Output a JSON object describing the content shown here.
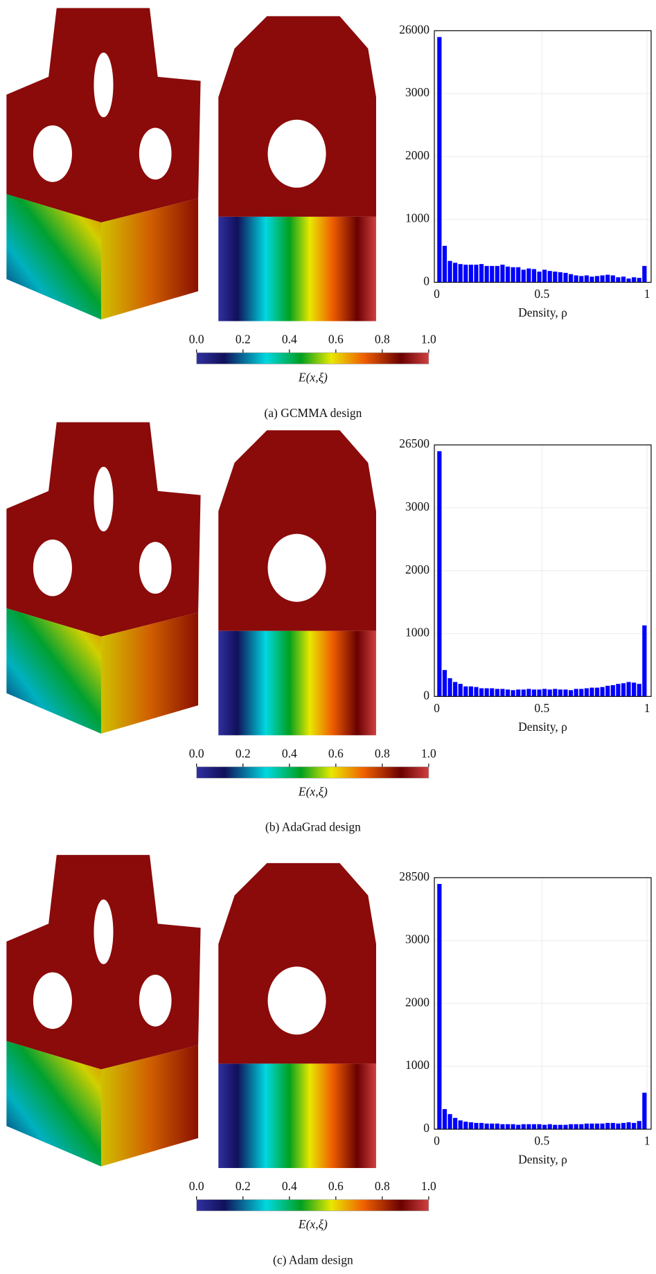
{
  "chart_data": [
    {
      "type": "histogram",
      "caption": "(a) GCMMA design",
      "xlabel": "Density, ρ",
      "color": "#0000ff",
      "bins": [
        0,
        0.025,
        0.05,
        0.075,
        0.1,
        0.125,
        0.15,
        0.175,
        0.2,
        0.225,
        0.25,
        0.275,
        0.3,
        0.325,
        0.35,
        0.375,
        0.4,
        0.425,
        0.45,
        0.475,
        0.5,
        0.525,
        0.55,
        0.575,
        0.6,
        0.625,
        0.65,
        0.675,
        0.7,
        0.725,
        0.75,
        0.775,
        0.8,
        0.825,
        0.85,
        0.875,
        0.9,
        0.925,
        0.95,
        0.975,
        1
      ],
      "values": [
        25900,
        580,
        340,
        310,
        290,
        280,
        280,
        280,
        290,
        260,
        260,
        260,
        280,
        250,
        240,
        240,
        200,
        220,
        210,
        170,
        200,
        180,
        170,
        160,
        150,
        130,
        110,
        100,
        110,
        90,
        100,
        110,
        120,
        110,
        80,
        90,
        60,
        80,
        70,
        260
      ],
      "xlim": [
        0,
        1
      ],
      "xticks": [
        0,
        0.5,
        1
      ],
      "ylim": [
        0,
        26000
      ],
      "ybreak": [
        3500,
        25500
      ],
      "yticks": [
        0,
        1000,
        2000,
        3000,
        26000
      ],
      "grid": true,
      "colorbar": {
        "label": "E(x,ξ)",
        "ticks": [
          {
            "value": 0,
            "label": "0.0"
          },
          0.2,
          0.4,
          0.6,
          0.8,
          {
            "value": 1,
            "label": "1.0"
          }
        ]
      }
    },
    {
      "type": "histogram",
      "caption": "(b) AdaGrad design",
      "xlabel": "Density, ρ",
      "color": "#0000ff",
      "bins": [
        0,
        0.025,
        0.05,
        0.075,
        0.1,
        0.125,
        0.15,
        0.175,
        0.2,
        0.225,
        0.25,
        0.275,
        0.3,
        0.325,
        0.35,
        0.375,
        0.4,
        0.425,
        0.45,
        0.475,
        0.5,
        0.525,
        0.55,
        0.575,
        0.6,
        0.625,
        0.65,
        0.675,
        0.7,
        0.725,
        0.75,
        0.775,
        0.8,
        0.825,
        0.85,
        0.875,
        0.9,
        0.925,
        0.95,
        0.975,
        1
      ],
      "values": [
        26400,
        420,
        290,
        230,
        200,
        160,
        160,
        150,
        130,
        130,
        130,
        120,
        120,
        110,
        100,
        110,
        110,
        120,
        110,
        110,
        120,
        110,
        120,
        110,
        110,
        100,
        120,
        120,
        130,
        140,
        140,
        150,
        170,
        180,
        200,
        210,
        230,
        220,
        200,
        1130
      ],
      "xlim": [
        0,
        1
      ],
      "xticks": [
        0,
        0.5,
        1
      ],
      "ylim": [
        0,
        26500
      ],
      "ybreak": [
        3500,
        26000
      ],
      "yticks": [
        0,
        1000,
        2000,
        3000,
        26500
      ],
      "grid": true,
      "colorbar": {
        "label": "E(x,ξ)",
        "ticks": [
          {
            "value": 0,
            "label": "0.0"
          },
          0.2,
          0.4,
          0.6,
          0.8,
          {
            "value": 1,
            "label": "1.0"
          }
        ]
      }
    },
    {
      "type": "histogram",
      "caption": "(c) Adam design",
      "xlabel": "Density, ρ",
      "color": "#0000ff",
      "bins": [
        0,
        0.025,
        0.05,
        0.075,
        0.1,
        0.125,
        0.15,
        0.175,
        0.2,
        0.225,
        0.25,
        0.275,
        0.3,
        0.325,
        0.35,
        0.375,
        0.4,
        0.425,
        0.45,
        0.475,
        0.5,
        0.525,
        0.55,
        0.575,
        0.6,
        0.625,
        0.65,
        0.675,
        0.7,
        0.725,
        0.75,
        0.775,
        0.8,
        0.825,
        0.85,
        0.875,
        0.9,
        0.925,
        0.95,
        0.975,
        1
      ],
      "values": [
        28400,
        320,
        240,
        180,
        140,
        120,
        110,
        100,
        100,
        90,
        90,
        90,
        80,
        80,
        80,
        70,
        80,
        80,
        80,
        80,
        70,
        80,
        70,
        70,
        70,
        80,
        80,
        80,
        90,
        90,
        90,
        90,
        100,
        100,
        90,
        100,
        110,
        100,
        130,
        580
      ],
      "xlim": [
        0,
        1
      ],
      "xticks": [
        0,
        0.5,
        1
      ],
      "ylim": [
        0,
        28500
      ],
      "ybreak": [
        3500,
        28000
      ],
      "yticks": [
        0,
        1000,
        2000,
        3000,
        28500
      ],
      "grid": true,
      "colorbar": {
        "label": "E(x,ξ)",
        "ticks": [
          {
            "value": 0,
            "label": "0.0"
          },
          0.2,
          0.4,
          0.6,
          0.8,
          {
            "value": 1,
            "label": "1.0"
          }
        ]
      }
    }
  ]
}
